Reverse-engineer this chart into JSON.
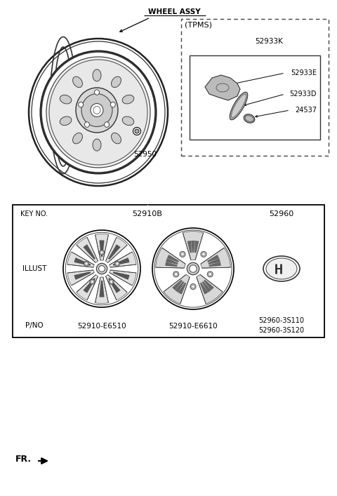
{
  "bg_color": "#ffffff",
  "label_wheel_assy": "WHEEL ASSY",
  "label_52950": "52950",
  "label_tpms": "(TPMS)",
  "label_52933K": "52933K",
  "label_52933E": "52933E",
  "label_52933D": "52933D",
  "label_24537": "24537",
  "table_key_no": "KEY NO.",
  "table_col1_key": "52910B",
  "table_col2_key": "52960",
  "table_row_illust": "ILLUST",
  "table_row_pno": "P/NO",
  "table_pno1": "52910-E6510",
  "table_pno2": "52910-E6610",
  "table_pno3": "52960-3S110\n52960-3S120",
  "label_fr": "FR."
}
